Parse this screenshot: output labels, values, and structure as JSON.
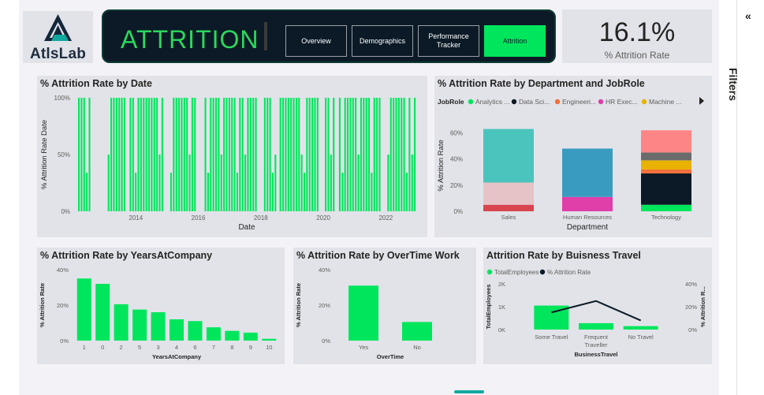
{
  "header": {
    "logo_text": "AtlsLab",
    "banner_title": "ATTRITION",
    "nav": [
      {
        "label": "Overview",
        "active": false
      },
      {
        "label": "Demographics",
        "active": false
      },
      {
        "label": "Performance Tracker",
        "active": false
      },
      {
        "label": "Attrition",
        "active": true
      }
    ],
    "kpi": {
      "value": "16.1%",
      "label": "% Attrition Rate"
    }
  },
  "filters": {
    "label": "Filters",
    "collapse_icon": "double-chevron-left-icon"
  },
  "colors": {
    "accent_green": "#00e65c",
    "banner_bg": "#0b1a26",
    "card_bg": "#e1e3e9",
    "line_dark": "#252423"
  },
  "chart_data": [
    {
      "id": "by_date",
      "type": "bar",
      "title": "% Attrition Rate by Date",
      "xlabel": "Date",
      "ylabel": "% Attrition Rate Date",
      "y_ticks": [
        "0%",
        "50%",
        "100%"
      ],
      "x_ticks": [
        "2014",
        "2016",
        "2018",
        "2020",
        "2022"
      ],
      "x_range": [
        2012.1,
        2023.0
      ],
      "ylim": [
        0,
        100
      ],
      "active_periods": [
        [
          2012.15,
          2012.55
        ],
        [
          2013.1,
          2013.65
        ],
        [
          2013.8,
          2014.9
        ],
        [
          2015.1,
          2015.9
        ],
        [
          2016.2,
          2017.9
        ],
        [
          2018.1,
          2018.45
        ],
        [
          2018.6,
          2019.85
        ],
        [
          2020.05,
          2020.35
        ],
        [
          2020.5,
          2021.85
        ],
        [
          2022.05,
          2022.95
        ]
      ],
      "series_color": "#00e65c"
    },
    {
      "id": "by_department_jobrole",
      "type": "bar",
      "stacked": true,
      "title": "% Attrition Rate by Department and JobRole",
      "xlabel": "Department",
      "ylabel": "% Attrition Rate",
      "legend_title": "JobRole",
      "legend": [
        {
          "name": "Analytics ...",
          "color": "#00e65c"
        },
        {
          "name": "Data Sci...",
          "color": "#0b1a26"
        },
        {
          "name": "Engineeri...",
          "color": "#f2703a"
        },
        {
          "name": "HR Exec...",
          "color": "#e03ea8"
        },
        {
          "name": "Machine ...",
          "color": "#e8b200"
        }
      ],
      "legend_more_icon": "caret-right-icon",
      "y_ticks": [
        "0%",
        "20%",
        "40%",
        "60%"
      ],
      "ylim": [
        0,
        70
      ],
      "categories": [
        "Sales",
        "Human Resources",
        "Technology"
      ],
      "stacks": [
        [
          {
            "value": 5,
            "color": "#d9454f"
          },
          {
            "value": 17,
            "color": "#e6c3c6"
          },
          {
            "value": 41,
            "color": "#4bc4bd"
          }
        ],
        [
          {
            "value": 11,
            "color": "#e03ea8"
          },
          {
            "value": 37,
            "color": "#3a9bc1"
          }
        ],
        [
          {
            "value": 5,
            "color": "#00e65c"
          },
          {
            "value": 24,
            "color": "#0b1a26"
          },
          {
            "value": 3,
            "color": "#f2703a"
          },
          {
            "value": 7,
            "color": "#e8b200"
          },
          {
            "value": 6,
            "color": "#6b6b6b"
          },
          {
            "value": 17,
            "color": "#fd8585"
          }
        ]
      ]
    },
    {
      "id": "by_years_at_company",
      "type": "bar",
      "title": "% Attrition Rate by YearsAtCompany",
      "xlabel": "YearsAtCompany",
      "ylabel": "% Attrition Rate",
      "y_ticks": [
        "0%",
        "20%",
        "40%"
      ],
      "ylim": [
        0,
        40
      ],
      "categories": [
        "1",
        "0",
        "2",
        "5",
        "3",
        "4",
        "6",
        "7",
        "8",
        "9",
        "10"
      ],
      "values": [
        35,
        32,
        20.5,
        17.5,
        16,
        12,
        11,
        7.5,
        5.5,
        4.5,
        1
      ],
      "color": "#00e65c"
    },
    {
      "id": "by_overtime",
      "type": "bar",
      "title": "% Attrition Rate by OverTime Work",
      "xlabel": "OverTime",
      "ylabel": "% Attrition Rate",
      "y_ticks": [
        "0%",
        "20%",
        "40%"
      ],
      "ylim": [
        0,
        40
      ],
      "categories": [
        "Yes",
        "No"
      ],
      "values": [
        31,
        10.5
      ],
      "color": "#00e65c"
    },
    {
      "id": "by_business_travel",
      "type": "bar",
      "title": "Attrition Rate by Buisness Travel",
      "xlabel": "BusinessTravel",
      "ylabel": "TotalEmployees",
      "ylabel_right": "% Attrition R...",
      "legend": [
        {
          "name": "TotalEmployees",
          "color": "#00e65c"
        },
        {
          "name": "% Attrition Rate",
          "color": "#0b1a26"
        }
      ],
      "y_ticks": [
        "0K",
        "1K",
        "2K"
      ],
      "y_ticks_right": [
        "0%",
        "20%",
        "40%"
      ],
      "ylim": [
        0,
        2000
      ],
      "ylim_right": [
        0,
        40
      ],
      "categories": [
        "Some Travel",
        "Frequent Traveller",
        "No Travel"
      ],
      "category_lines": [
        [
          "Some Travel"
        ],
        [
          "Frequent",
          "Traveller"
        ],
        [
          "No Travel"
        ]
      ],
      "series": [
        {
          "name": "TotalEmployees",
          "values": [
            1050,
            280,
            150
          ]
        },
        {
          "name": "% Attrition Rate",
          "values": [
            15,
            25,
            8
          ]
        }
      ]
    }
  ]
}
